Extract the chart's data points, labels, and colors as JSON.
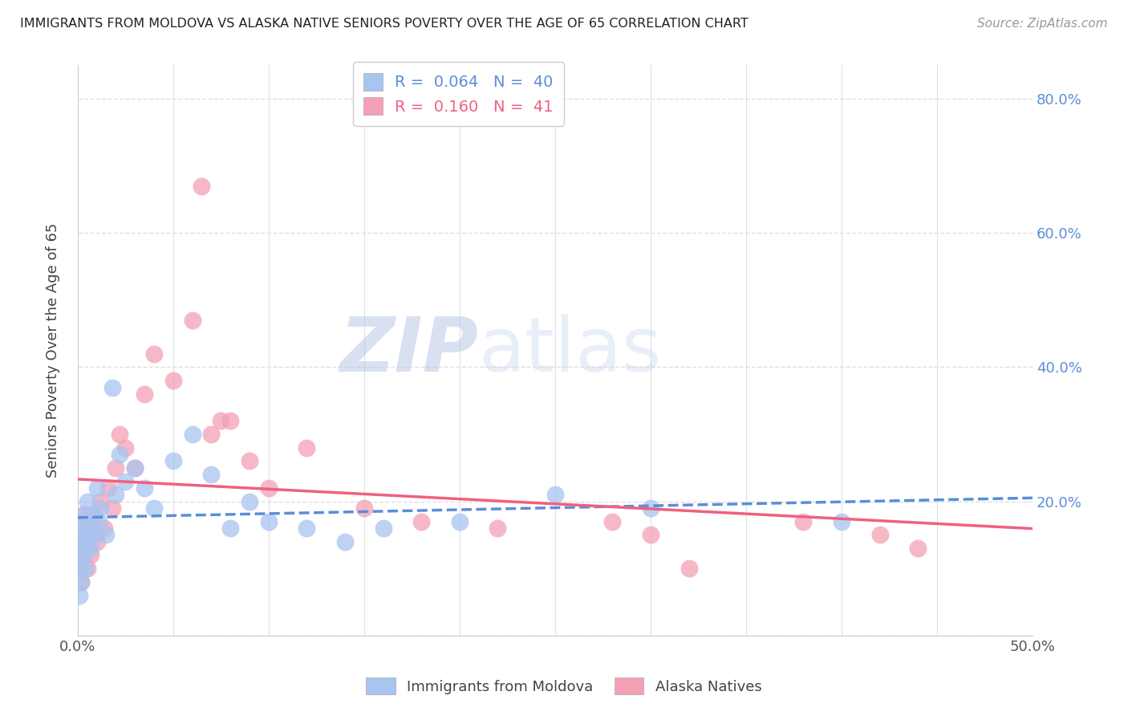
{
  "title": "IMMIGRANTS FROM MOLDOVA VS ALASKA NATIVE SENIORS POVERTY OVER THE AGE OF 65 CORRELATION CHART",
  "source": "Source: ZipAtlas.com",
  "ylabel": "Seniors Poverty Over the Age of 65",
  "xlim": [
    0.0,
    0.5
  ],
  "ylim": [
    0.0,
    0.85
  ],
  "x_ticks": [
    0.0,
    0.05,
    0.1,
    0.15,
    0.2,
    0.25,
    0.3,
    0.35,
    0.4,
    0.45,
    0.5
  ],
  "y_ticks": [
    0.0,
    0.2,
    0.4,
    0.6,
    0.8
  ],
  "legend1_R": "0.064",
  "legend1_N": "40",
  "legend2_R": "0.160",
  "legend2_N": "41",
  "color_blue": "#a8c4f0",
  "color_pink": "#f4a0b5",
  "line_blue": "#5b8dd9",
  "line_pink": "#f06080",
  "blue_scatter_x": [
    0.001,
    0.001,
    0.001,
    0.002,
    0.002,
    0.002,
    0.003,
    0.003,
    0.004,
    0.004,
    0.005,
    0.005,
    0.006,
    0.007,
    0.008,
    0.009,
    0.01,
    0.011,
    0.012,
    0.015,
    0.018,
    0.02,
    0.022,
    0.025,
    0.03,
    0.035,
    0.04,
    0.05,
    0.06,
    0.07,
    0.08,
    0.09,
    0.1,
    0.12,
    0.14,
    0.16,
    0.2,
    0.25,
    0.3,
    0.4
  ],
  "blue_scatter_y": [
    0.14,
    0.1,
    0.06,
    0.12,
    0.08,
    0.16,
    0.18,
    0.12,
    0.15,
    0.1,
    0.2,
    0.14,
    0.16,
    0.13,
    0.18,
    0.15,
    0.22,
    0.17,
    0.19,
    0.15,
    0.37,
    0.21,
    0.27,
    0.23,
    0.25,
    0.22,
    0.19,
    0.26,
    0.3,
    0.24,
    0.16,
    0.2,
    0.17,
    0.16,
    0.14,
    0.16,
    0.17,
    0.21,
    0.19,
    0.17
  ],
  "pink_scatter_x": [
    0.001,
    0.001,
    0.002,
    0.002,
    0.003,
    0.003,
    0.004,
    0.005,
    0.006,
    0.007,
    0.008,
    0.009,
    0.01,
    0.012,
    0.014,
    0.016,
    0.018,
    0.02,
    0.022,
    0.025,
    0.03,
    0.035,
    0.04,
    0.05,
    0.06,
    0.065,
    0.07,
    0.075,
    0.08,
    0.09,
    0.1,
    0.12,
    0.15,
    0.18,
    0.22,
    0.28,
    0.32,
    0.38,
    0.42,
    0.44,
    0.3
  ],
  "pink_scatter_y": [
    0.1,
    0.14,
    0.08,
    0.16,
    0.12,
    0.18,
    0.14,
    0.1,
    0.15,
    0.12,
    0.16,
    0.18,
    0.14,
    0.2,
    0.16,
    0.22,
    0.19,
    0.25,
    0.3,
    0.28,
    0.25,
    0.36,
    0.42,
    0.38,
    0.47,
    0.67,
    0.3,
    0.32,
    0.32,
    0.26,
    0.22,
    0.28,
    0.19,
    0.17,
    0.16,
    0.17,
    0.1,
    0.17,
    0.15,
    0.13,
    0.15
  ],
  "background_color": "#ffffff",
  "grid_color": "#e0e0e0"
}
